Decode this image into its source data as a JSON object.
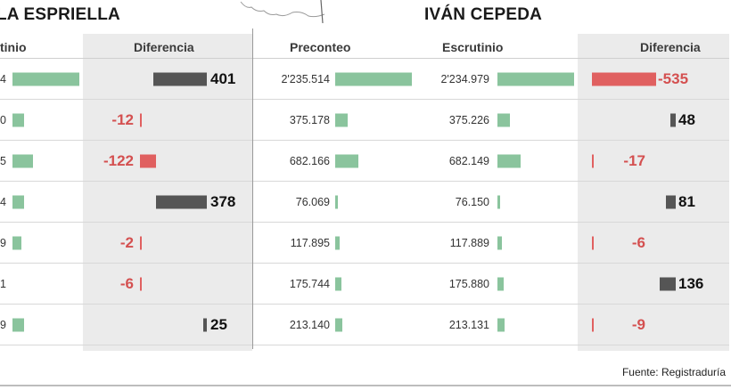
{
  "left_panel": {
    "title": "LA ESPRIELLA",
    "headers": {
      "escrutinio": "tinio",
      "diferencia": "Diferencia"
    },
    "rows": [
      {
        "escrutinio_text": "4",
        "escrutinio_value": 2235000,
        "diferencia": "401",
        "diferencia_value": 401
      },
      {
        "escrutinio_text": "0",
        "escrutinio_value": 375000,
        "diferencia": "-12",
        "diferencia_value": -12
      },
      {
        "escrutinio_text": "5",
        "escrutinio_value": 682000,
        "diferencia": "-122",
        "diferencia_value": -122
      },
      {
        "escrutinio_text": "4",
        "escrutinio_value": 380000,
        "diferencia": "378",
        "diferencia_value": 378
      },
      {
        "escrutinio_text": "9",
        "escrutinio_value": 300000,
        "diferencia": "-2",
        "diferencia_value": -2
      },
      {
        "escrutinio_text": "1",
        "escrutinio_value": 0,
        "diferencia": "-6",
        "diferencia_value": -6
      },
      {
        "escrutinio_text": "9",
        "escrutinio_value": 380000,
        "diferencia": "25",
        "diferencia_value": 25
      }
    ]
  },
  "right_panel": {
    "title": "IVÁN CEPEDA",
    "headers": {
      "preconteo": "Preconteo",
      "escrutinio": "Escrutinio",
      "diferencia": "Diferencia"
    },
    "rows": [
      {
        "preconteo": "2'235.514",
        "preconteo_value": 2235514,
        "escrutinio": "2'234.979",
        "escrutinio_value": 2234979,
        "diferencia": "-535",
        "diferencia_value": -535
      },
      {
        "preconteo": "375.178",
        "preconteo_value": 375178,
        "escrutinio": "375.226",
        "escrutinio_value": 375226,
        "diferencia": "48",
        "diferencia_value": 48
      },
      {
        "preconteo": "682.166",
        "preconteo_value": 682166,
        "escrutinio": "682.149",
        "escrutinio_value": 682149,
        "diferencia": "-17",
        "diferencia_value": -17
      },
      {
        "preconteo": "76.069",
        "preconteo_value": 76069,
        "escrutinio": "76.150",
        "escrutinio_value": 76150,
        "diferencia": "81",
        "diferencia_value": 81
      },
      {
        "preconteo": "117.895",
        "preconteo_value": 117895,
        "escrutinio": "117.889",
        "escrutinio_value": 117889,
        "diferencia": "-6",
        "diferencia_value": -6
      },
      {
        "preconteo": "175.744",
        "preconteo_value": 175744,
        "escrutinio": "175.880",
        "escrutinio_value": 175880,
        "diferencia": "136",
        "diferencia_value": 136
      },
      {
        "preconteo": "213.140",
        "preconteo_value": 213140,
        "escrutinio": "213.131",
        "escrutinio_value": 213131,
        "diferencia": "-9",
        "diferencia_value": -9
      }
    ]
  },
  "source": "Fuente: Registraduría",
  "colors": {
    "count_bar": "#8ac49d",
    "positive_diff": "#555555",
    "negative_diff": "#e06060",
    "negative_text": "#d45050",
    "diff_background": "#ebebeb"
  },
  "chart_data": {
    "type": "table",
    "title": "",
    "candidates": [
      "LA ESPRIELLA",
      "IVÁN CEPEDA"
    ],
    "columns": [
      "Preconteo",
      "Escrutinio",
      "Diferencia"
    ],
    "series": [
      {
        "name": "LA ESPRIELLA — Diferencia",
        "values": [
          401,
          -12,
          -122,
          378,
          -2,
          -6,
          25
        ]
      },
      {
        "name": "IVÁN CEPEDA — Preconteo",
        "values": [
          2235514,
          375178,
          682166,
          76069,
          117895,
          175744,
          213140
        ]
      },
      {
        "name": "IVÁN CEPEDA — Escrutinio",
        "values": [
          2234979,
          375226,
          682149,
          76150,
          117889,
          175880,
          213131
        ]
      },
      {
        "name": "IVÁN CEPEDA — Diferencia",
        "values": [
          -535,
          48,
          -17,
          81,
          -6,
          136,
          -9
        ]
      }
    ]
  }
}
